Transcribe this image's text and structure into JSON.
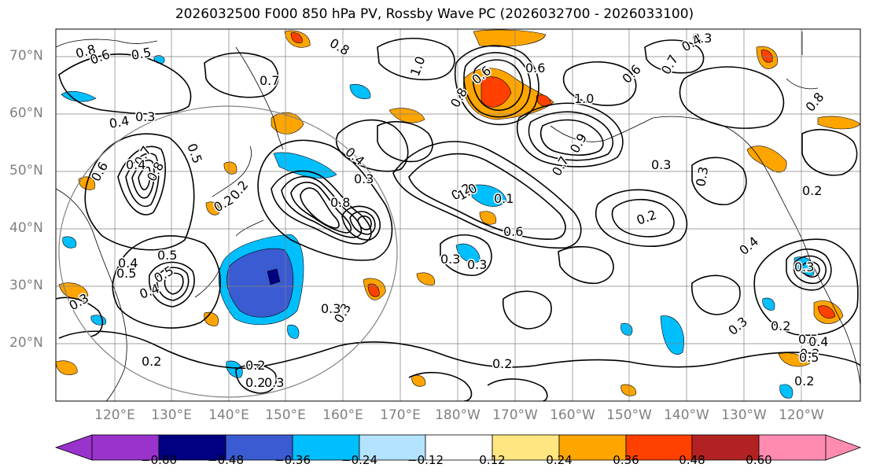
{
  "title": "2026032500 F000 850 hPa PV, Rossby Wave PC (2026032700 - 2026033100)",
  "axes": {
    "lat_labels": [
      "70°N",
      "60°N",
      "50°N",
      "40°N",
      "30°N",
      "20°N"
    ],
    "lon_labels": [
      "120°E",
      "130°E",
      "140°E",
      "150°E",
      "160°E",
      "170°E",
      "180°W",
      "170°W",
      "160°W",
      "150°W",
      "140°W",
      "130°W",
      "120°W"
    ]
  },
  "colorbar": {
    "ticks": [
      "−0.60",
      "−0.48",
      "−0.36",
      "−0.24",
      "−0.12",
      "0.12",
      "0.24",
      "0.36",
      "0.48",
      "0.60"
    ],
    "colors": [
      "#9933cc",
      "#000080",
      "#3a5bd1",
      "#00bfff",
      "#b3e3ff",
      "#ffffff",
      "#ffe680",
      "#ffa500",
      "#ff4000",
      "#b22222",
      "#ff8cb0"
    ]
  },
  "contour_labels": [
    "0.8",
    "0.6",
    "0.5",
    "0.8",
    "0.7",
    "0.4",
    "0.3",
    "0.5",
    "0.6",
    "0.7",
    "0.8",
    "0.4",
    "0.3",
    "0.2",
    "0.8",
    "0.5",
    "1.0",
    "0.6",
    "0.8",
    "0.3",
    "0.4",
    "0.2",
    "0.3",
    "0.5",
    "0.4",
    "0.3",
    "0.2",
    "0.2",
    "0.3",
    "0.2",
    "0.1",
    "0.3",
    "0.6",
    "1.0",
    "0.7",
    "0.9",
    "1.0",
    "0.3",
    "0.6",
    "0.7",
    "0.3",
    "0.4",
    "0.2",
    "0.3",
    "0.2",
    "0.4",
    "0.3",
    "0.8",
    "0.2",
    "0.5",
    "0.2",
    "0.4",
    "0.2",
    "0.2",
    "0.3",
    "0.4",
    "0.5",
    "0.6",
    "0.3",
    "0.2",
    "0.5"
  ]
}
